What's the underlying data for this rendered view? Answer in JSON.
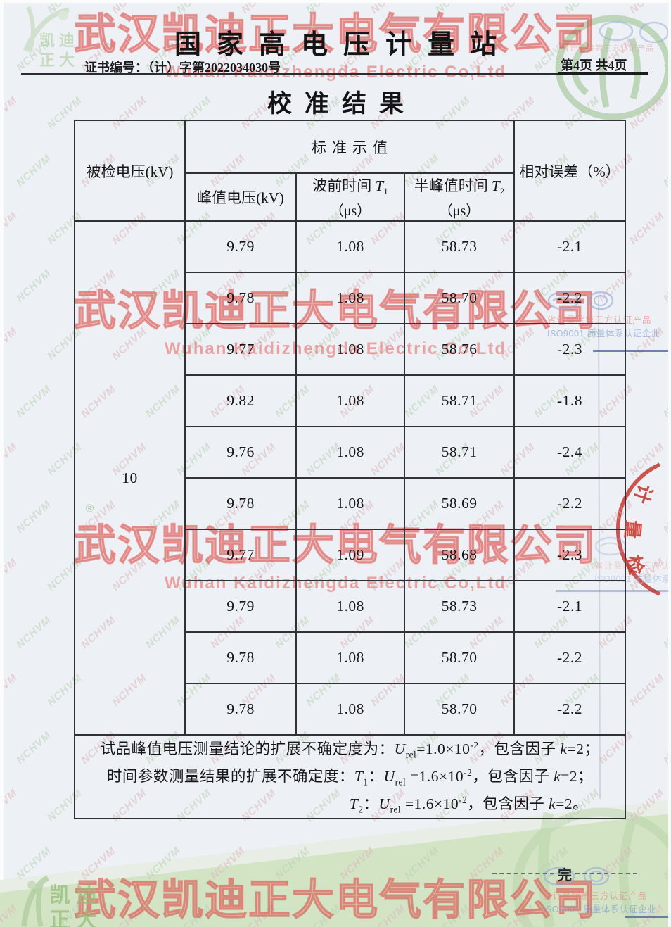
{
  "page": {
    "station_title": "国家高电压计量站",
    "certificate_no": "证书编号：（计）字第2022034030号",
    "page_indicator": "第4页 共4页",
    "section_title": "校准结果",
    "end_marker": "完"
  },
  "table": {
    "headers": {
      "tested_voltage": "被检电压(kV)",
      "standard_value": "标准示值",
      "peak_voltage": "峰值电压(kV)",
      "front_time": [
        {
          "v": "波前时间 "
        },
        {
          "v": "T",
          "style": "i"
        },
        {
          "v": "1",
          "style": "sub"
        }
      ],
      "half_peak_time": [
        {
          "v": "半峰值时间 "
        },
        {
          "v": "T",
          "style": "i"
        },
        {
          "v": "2",
          "style": "sub"
        }
      ],
      "unit_us": "（μs）",
      "relative_error": "相对误差（%）"
    },
    "tested_voltage_value": "10",
    "rows": [
      {
        "peak": "9.79",
        "t1": "1.08",
        "t2": "58.73",
        "err": "-2.1"
      },
      {
        "peak": "9.78",
        "t1": "1.08",
        "t2": "58.70",
        "err": "-2.2"
      },
      {
        "peak": "9.77",
        "t1": "1.08",
        "t2": "58.76",
        "err": "-2.3"
      },
      {
        "peak": "9.82",
        "t1": "1.08",
        "t2": "58.71",
        "err": "-1.8"
      },
      {
        "peak": "9.76",
        "t1": "1.08",
        "t2": "58.71",
        "err": "-2.4"
      },
      {
        "peak": "9.78",
        "t1": "1.08",
        "t2": "58.69",
        "err": "-2.2"
      },
      {
        "peak": "9.77",
        "t1": "1.09",
        "t2": "58.68",
        "err": "-2.3"
      },
      {
        "peak": "9.79",
        "t1": "1.08",
        "t2": "58.73",
        "err": "-2.1"
      },
      {
        "peak": "9.78",
        "t1": "1.08",
        "t2": "58.70",
        "err": "-2.2"
      },
      {
        "peak": "9.78",
        "t1": "1.08",
        "t2": "58.70",
        "err": "-2.2"
      }
    ],
    "notes": [
      [
        {
          "v": "试品峰值电压测量结论的扩展不确定度为："
        },
        {
          "v": "U",
          "style": "i"
        },
        {
          "v": "rel",
          "style": "sub"
        },
        {
          "v": "=1.0×10"
        },
        {
          "v": "-2",
          "style": "sup"
        },
        {
          "v": "，包含因子 "
        },
        {
          "v": "k",
          "style": "i"
        },
        {
          "v": "=2；"
        }
      ],
      [
        {
          "v": "时间参数测量结果的扩展不确定度："
        },
        {
          "v": "T",
          "style": "i"
        },
        {
          "v": "1",
          "style": "sub"
        },
        {
          "v": "："
        },
        {
          "v": "U",
          "style": "i"
        },
        {
          "v": "rel",
          "style": "sub"
        },
        {
          "v": " =1.6×10"
        },
        {
          "v": "-2",
          "style": "sup"
        },
        {
          "v": "，包含因子 "
        },
        {
          "v": "k",
          "style": "i"
        },
        {
          "v": "=2；"
        }
      ],
      [
        {
          "v": "T",
          "style": "i"
        },
        {
          "v": "2",
          "style": "sub"
        },
        {
          "v": "："
        },
        {
          "v": "U",
          "style": "i"
        },
        {
          "v": "rel",
          "style": "sub"
        },
        {
          "v": " =1.6×10"
        },
        {
          "v": "-2",
          "style": "sup"
        },
        {
          "v": "，包含因子 "
        },
        {
          "v": "k",
          "style": "i"
        },
        {
          "v": "=2。"
        }
      ]
    ]
  },
  "watermarks": {
    "company_cn": "武汉凯迪正大电气有限公司",
    "company_en": "Wuhan Kaidizhengda Electric Co,Ltd",
    "diagonal_text": "NCHVM",
    "diagonal_colors": [
      "#d9b4b8",
      "#b7d0b3"
    ],
    "brand_line1": "凯迪",
    "brand_line2": "正大",
    "registered_mark": "®"
  },
  "stamp": {
    "chars": [
      "计",
      "量",
      "检"
    ]
  },
  "side_certs": {
    "red_text": "省计量院第三方认证产品",
    "blue_text": "ISO9001 质量体系认证企业"
  }
}
